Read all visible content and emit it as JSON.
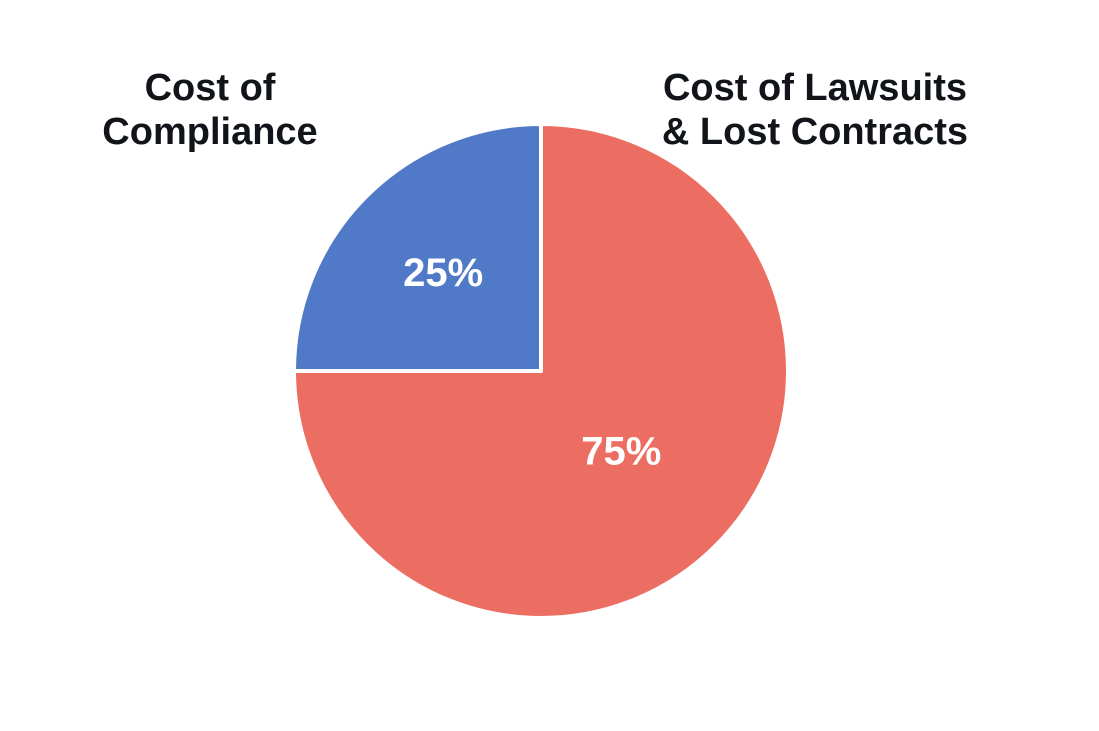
{
  "chart_data": {
    "type": "pie",
    "title": "",
    "slices": [
      {
        "label_lines": [
          "Cost of",
          "Compliance"
        ],
        "value": 25,
        "value_label": "25%",
        "color": "#5079c8"
      },
      {
        "label_lines": [
          "Cost of Lawsuits",
          "& Lost Contracts"
        ],
        "value": 75,
        "value_label": "75%",
        "color": "#ec6e62"
      }
    ],
    "slice_border_color": "#ffffff",
    "value_label_color": "#ffffff",
    "legend": "none"
  }
}
